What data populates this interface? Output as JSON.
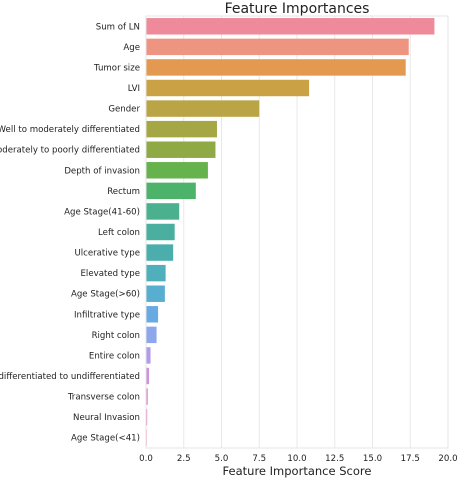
{
  "chart_data": {
    "type": "bar",
    "orientation": "horizontal",
    "title": "Feature Importances",
    "xlabel": "Feature Importance Score",
    "ylabel": "",
    "xlim": [
      0,
      20
    ],
    "xticks": [
      "0.0",
      "2.5",
      "5.0",
      "7.5",
      "10.0",
      "12.5",
      "15.0",
      "17.5",
      "20.0"
    ],
    "grid": "vertical",
    "categories": [
      "Sum of LN",
      "Age",
      "Tumor size",
      "LVI",
      "Gender",
      "Well to moderately differentiated",
      "Moderately to poorly differentiated",
      "Depth of invasion",
      "Rectum",
      "Age Stage(41-60)",
      "Left colon",
      "Ulcerative type",
      "Elevated type",
      "Age Stage(>60)",
      "Infiltrative type",
      "Right colon",
      "Entire colon",
      "Poorly differentiated to undifferentiated",
      "Transverse colon",
      "Neural Invasion",
      "Age Stage(<41)"
    ],
    "values": [
      19.1,
      17.4,
      17.2,
      10.8,
      7.5,
      4.7,
      4.6,
      4.1,
      3.3,
      2.2,
      1.9,
      1.8,
      1.3,
      1.25,
      0.8,
      0.7,
      0.3,
      0.2,
      0.12,
      0.08,
      0.05
    ],
    "colors": [
      "#ee8a9a",
      "#ee9581",
      "#e39a50",
      "#cba145",
      "#b9a446",
      "#a5a644",
      "#8faa45",
      "#66b24c",
      "#4db36a",
      "#4bb08d",
      "#4aaf9e",
      "#4caeac",
      "#4fb0bb",
      "#58aed1",
      "#6aaae2",
      "#8da6ec",
      "#b29ce9",
      "#cd93e1",
      "#e08ad6",
      "#ec86c6",
      "#ee89b2"
    ]
  }
}
